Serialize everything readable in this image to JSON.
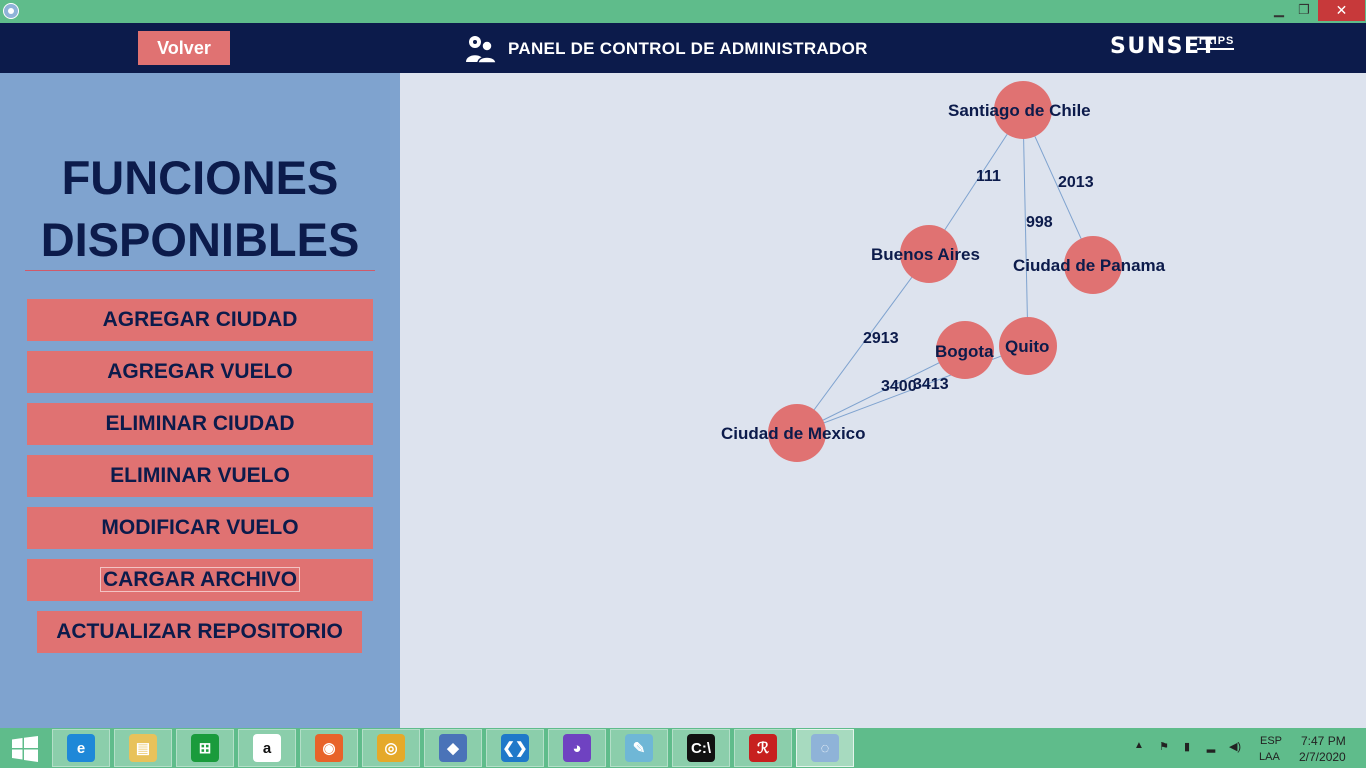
{
  "window": {
    "minimize_glyph": "▁",
    "maximize_glyph": "❐",
    "close_glyph": "✕"
  },
  "header": {
    "back_label": "Volver",
    "title": "PANEL DE CONTROL DE ADMINISTRADOR",
    "logo_main": "SUNSET",
    "logo_sub": "TRIPS"
  },
  "sidebar": {
    "title_line1": "FUNCIONES",
    "title_line2": "DISPONIBLES",
    "buttons": [
      "AGREGAR CIUDAD",
      "AGREGAR VUELO",
      "ELIMINAR CIUDAD",
      "ELIMINAR VUELO",
      "MODIFICAR VUELO",
      "CARGAR ARCHIVO",
      "ACTUALIZAR REPOSITORIO"
    ]
  },
  "graph": {
    "node_color": "#e07272",
    "edge_color": "#7fa3cf",
    "nodes": [
      {
        "id": "santiago",
        "label": "Santiago de Chile"
      },
      {
        "id": "buenos",
        "label": "Buenos Aires"
      },
      {
        "id": "panama",
        "label": "Ciudad de Panama"
      },
      {
        "id": "bogota",
        "label": "Bogota"
      },
      {
        "id": "quito",
        "label": "Quito"
      },
      {
        "id": "mexico",
        "label": "Ciudad de Mexico"
      }
    ],
    "edges": [
      {
        "from": "santiago",
        "to": "buenos",
        "weight": "111"
      },
      {
        "from": "santiago",
        "to": "panama",
        "weight": "2013"
      },
      {
        "from": "santiago",
        "to": "quito",
        "weight": "998"
      },
      {
        "from": "buenos",
        "to": "mexico",
        "weight": "2913"
      },
      {
        "from": "mexico",
        "to": "bogota",
        "weight": "3400"
      },
      {
        "from": "mexico",
        "to": "quito",
        "weight": "3413"
      }
    ]
  },
  "taskbar": {
    "apps": [
      {
        "name": "internet-explorer",
        "color": "#1e88d8",
        "glyph": "e"
      },
      {
        "name": "file-explorer",
        "color": "#e8c25a",
        "glyph": "▤"
      },
      {
        "name": "store",
        "color": "#1a9b3c",
        "glyph": "⊞"
      },
      {
        "name": "amazon",
        "color": "#ffffff",
        "glyph": "a"
      },
      {
        "name": "firefox",
        "color": "#e8632a",
        "glyph": "◉"
      },
      {
        "name": "chrome",
        "color": "#e5a92a",
        "glyph": "◎"
      },
      {
        "name": "virtualbox",
        "color": "#4a73b8",
        "glyph": "◆"
      },
      {
        "name": "vscode",
        "color": "#1f79c9",
        "glyph": "❮❯"
      },
      {
        "name": "github-desktop",
        "color": "#6f42c1",
        "glyph": "◕"
      },
      {
        "name": "notepad",
        "color": "#6fb7d6",
        "glyph": "✎"
      },
      {
        "name": "command-prompt",
        "color": "#111111",
        "glyph": "C:\\"
      },
      {
        "name": "acrobat-reader",
        "color": "#c7201f",
        "glyph": "ℛ"
      },
      {
        "name": "java-app",
        "color": "#8fb3d8",
        "glyph": "◌"
      }
    ],
    "lang1": "ESP",
    "lang2": "LAA",
    "time": "7:47 PM",
    "date": "2/7/2020"
  }
}
